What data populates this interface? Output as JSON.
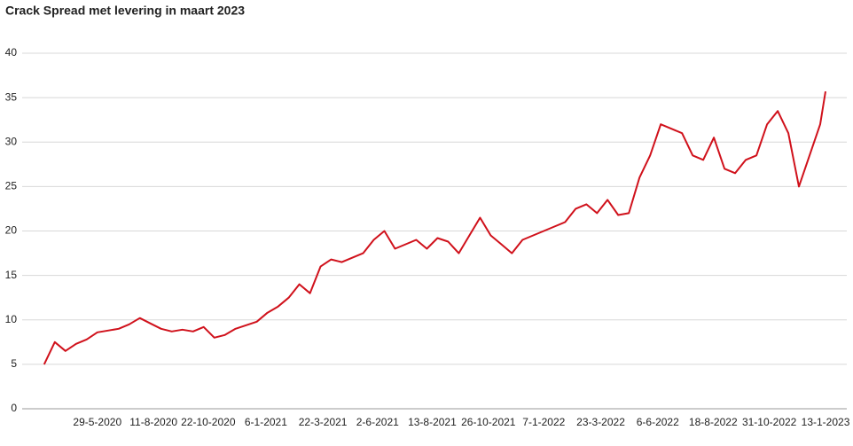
{
  "chart_data": {
    "type": "line",
    "title": "Crack Spread met levering in maart 2023",
    "x": [
      "20-3-2020",
      "3-4-2020",
      "17-4-2020",
      "1-5-2020",
      "15-5-2020",
      "29-5-2020",
      "12-6-2020",
      "26-6-2020",
      "10-7-2020",
      "24-7-2020",
      "7-8-2020",
      "21-8-2020",
      "4-9-2020",
      "18-9-2020",
      "2-10-2020",
      "16-10-2020",
      "30-10-2020",
      "13-11-2020",
      "27-11-2020",
      "11-12-2020",
      "25-12-2020",
      "8-1-2021",
      "22-1-2021",
      "5-2-2021",
      "19-2-2021",
      "5-3-2021",
      "19-3-2021",
      "2-4-2021",
      "16-4-2021",
      "30-4-2021",
      "14-5-2021",
      "28-5-2021",
      "11-6-2021",
      "25-6-2021",
      "9-7-2021",
      "23-7-2021",
      "6-8-2021",
      "20-8-2021",
      "3-9-2021",
      "17-9-2021",
      "1-10-2021",
      "15-10-2021",
      "29-10-2021",
      "12-11-2021",
      "26-11-2021",
      "10-12-2021",
      "24-12-2021",
      "7-1-2022",
      "21-1-2022",
      "4-2-2022",
      "18-2-2022",
      "4-3-2022",
      "18-3-2022",
      "1-4-2022",
      "15-4-2022",
      "29-4-2022",
      "13-5-2022",
      "27-5-2022",
      "10-6-2022",
      "24-6-2022",
      "8-7-2022",
      "22-7-2022",
      "5-8-2022",
      "19-8-2022",
      "2-9-2022",
      "16-9-2022",
      "30-9-2022",
      "14-10-2022",
      "28-10-2022",
      "11-11-2022",
      "25-11-2022",
      "9-12-2022",
      "23-12-2022",
      "6-1-2023",
      "13-1-2023"
    ],
    "values": [
      5.0,
      7.5,
      6.5,
      7.3,
      7.8,
      8.6,
      8.8,
      9.0,
      9.5,
      10.2,
      9.6,
      9.0,
      8.7,
      8.9,
      8.7,
      9.2,
      8.0,
      8.3,
      9.0,
      9.4,
      9.8,
      10.8,
      11.5,
      12.5,
      14.0,
      13.0,
      16.0,
      16.8,
      16.5,
      17.0,
      17.5,
      19.0,
      20.0,
      18.0,
      18.5,
      19.0,
      18.0,
      19.2,
      18.8,
      17.5,
      19.5,
      21.5,
      19.5,
      18.5,
      17.5,
      19.0,
      19.5,
      20.0,
      20.5,
      21.0,
      22.5,
      23.0,
      22.0,
      23.5,
      21.8,
      22.0,
      26.0,
      28.5,
      32.0,
      31.5,
      31.0,
      28.5,
      28.0,
      30.5,
      27.0,
      26.5,
      28.0,
      28.5,
      32.0,
      33.5,
      31.0,
      25.0,
      28.5,
      32.0,
      35.7
    ],
    "color": "#d0111b",
    "xlim": [
      "20-2-2020",
      "10-2-2023"
    ],
    "xticks": [
      "29-5-2020",
      "11-8-2020",
      "22-10-2020",
      "6-1-2021",
      "22-3-2021",
      "2-6-2021",
      "13-8-2021",
      "26-10-2021",
      "7-1-2022",
      "23-3-2022",
      "6-6-2022",
      "18-8-2022",
      "31-10-2022",
      "13-1-2023"
    ],
    "ylim": [
      0,
      40
    ],
    "yticks": [
      0,
      5,
      10,
      15,
      20,
      25,
      30,
      35,
      40
    ],
    "grid": true
  }
}
